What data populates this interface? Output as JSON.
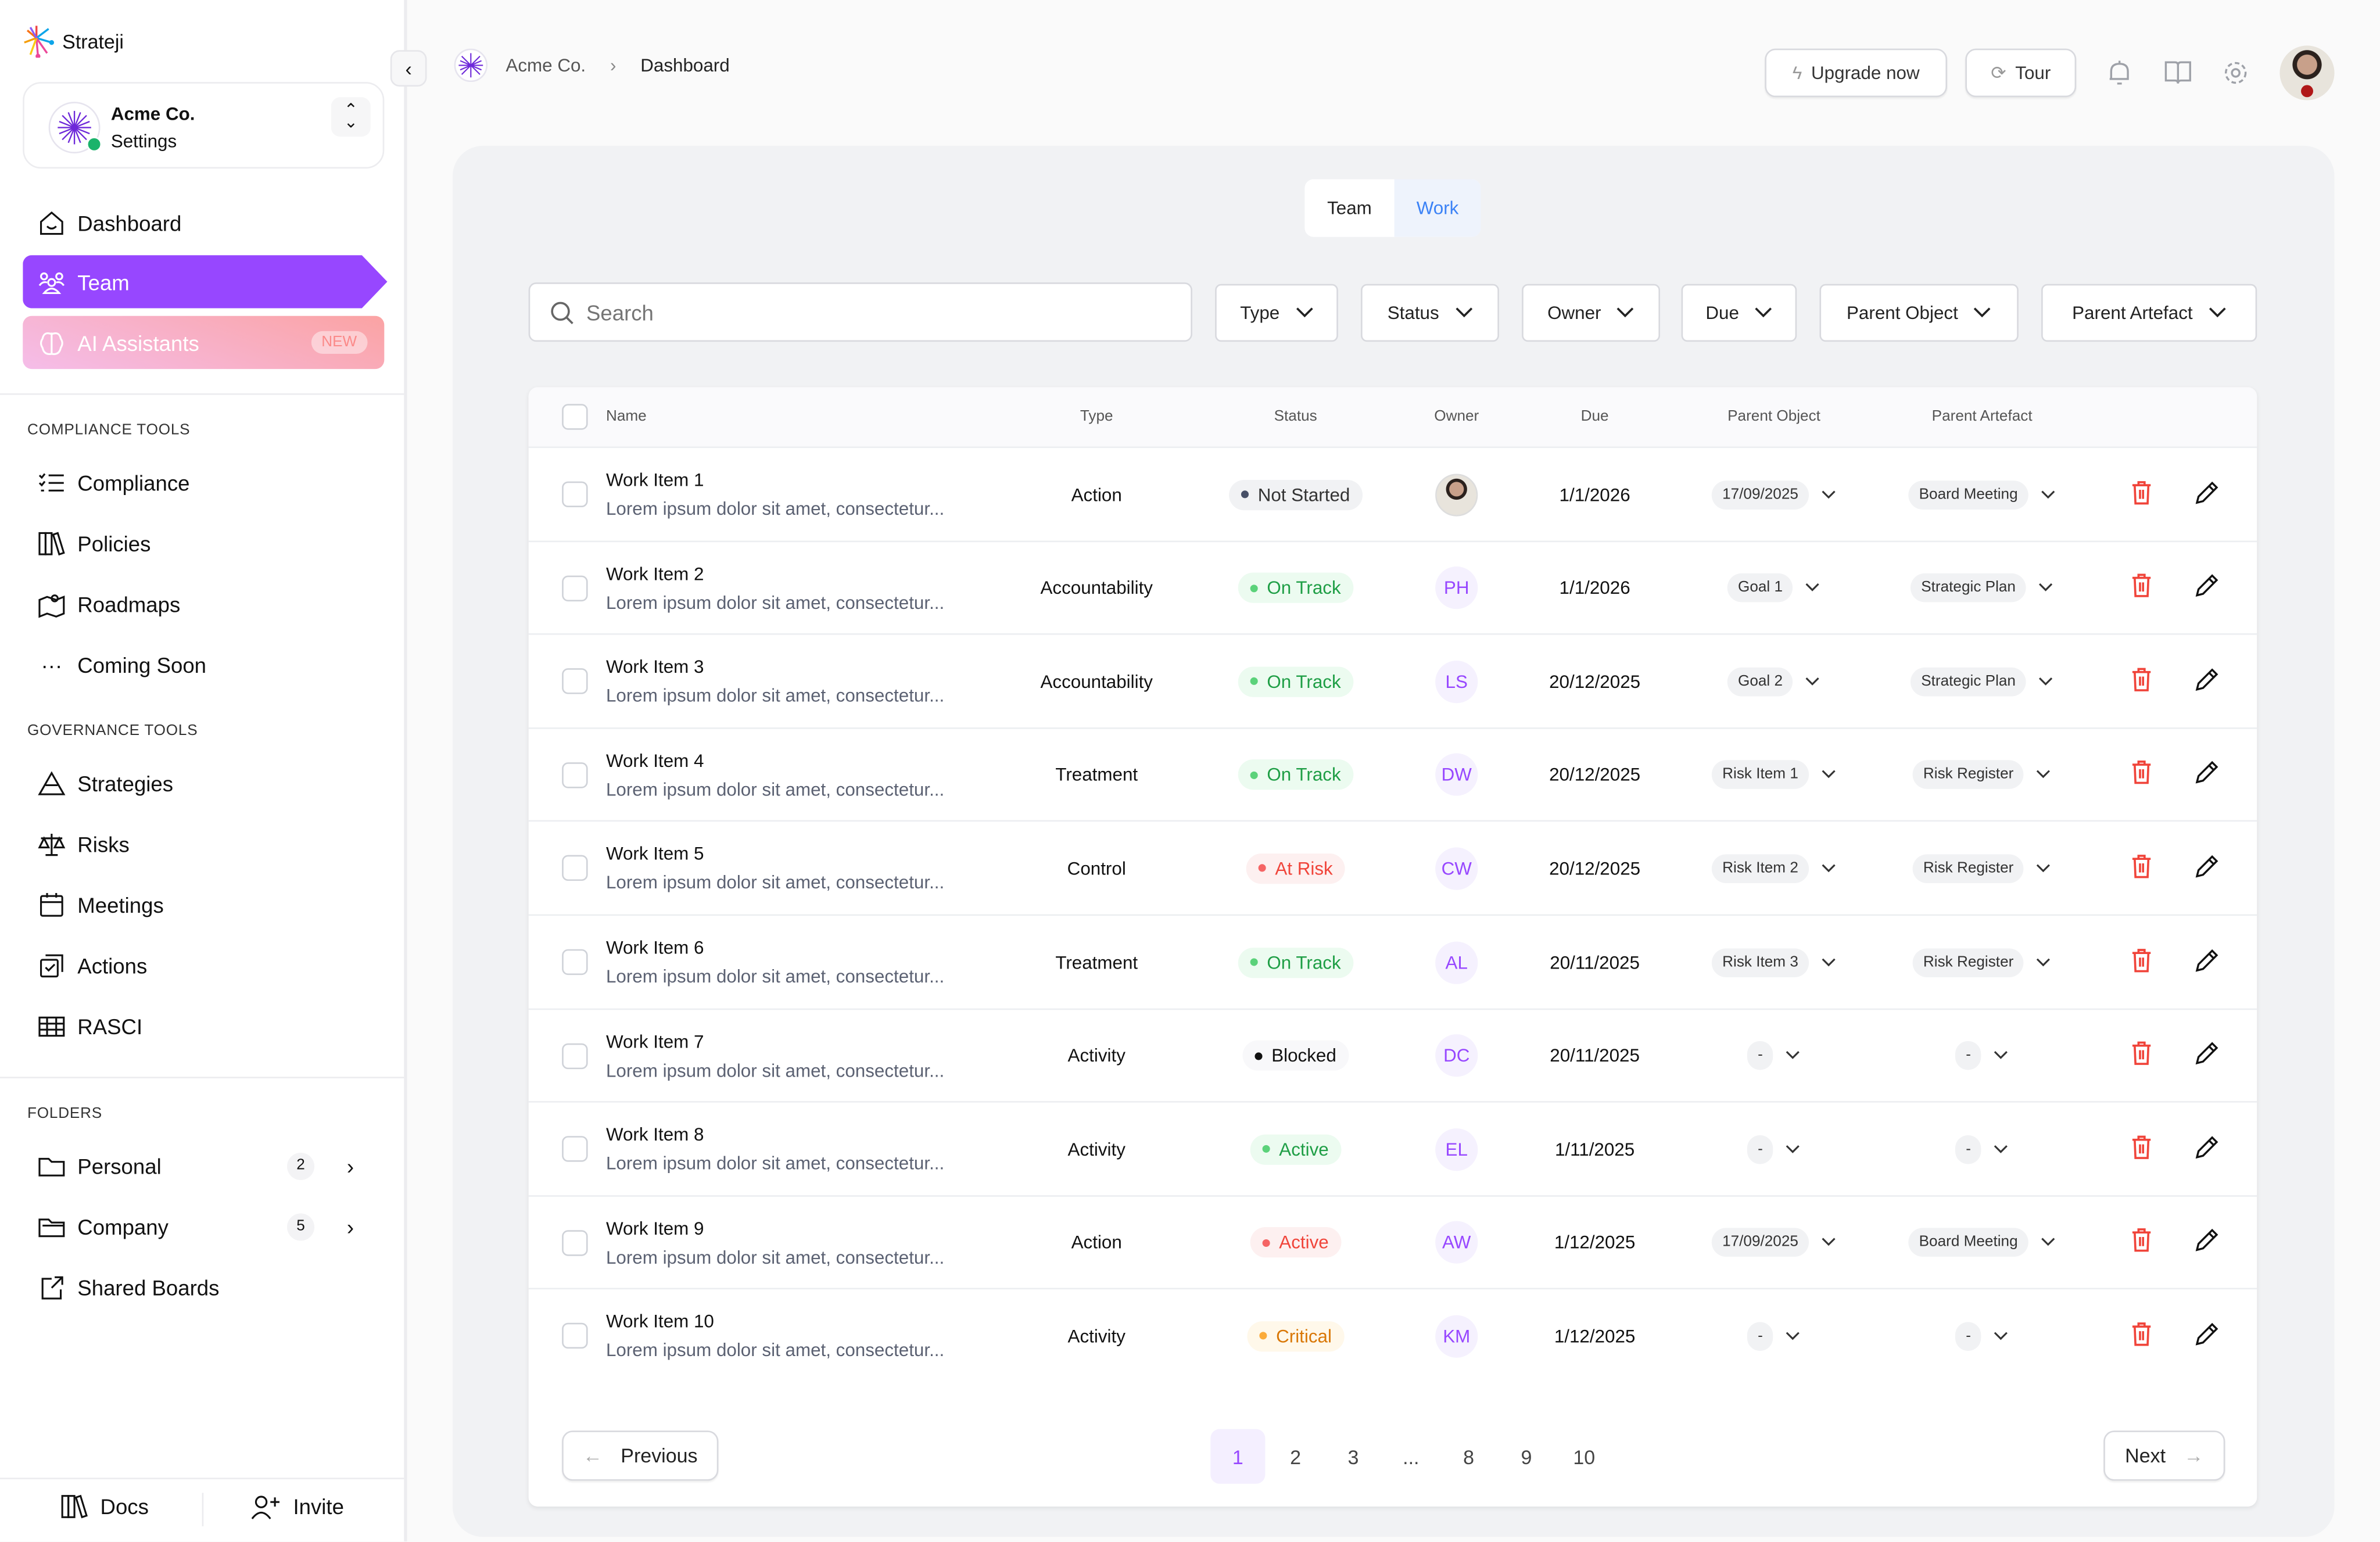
{
  "app": {
    "name": "Strateji"
  },
  "org": {
    "name": "Acme Co.",
    "subtitle": "Settings"
  },
  "nav": {
    "dashboard": "Dashboard",
    "team": "Team",
    "ai": "AI Assistants",
    "ai_badge": "NEW"
  },
  "compliance": {
    "title": "COMPLIANCE TOOLS",
    "items": [
      "Compliance",
      "Policies",
      "Roadmaps",
      "Coming Soon"
    ]
  },
  "governance": {
    "title": "GOVERNANCE TOOLS",
    "items": [
      "Strategies",
      "Risks",
      "Meetings",
      "Actions",
      "RASCI"
    ]
  },
  "folders": {
    "title": "FOLDERS",
    "items": [
      {
        "label": "Personal",
        "count": "2"
      },
      {
        "label": "Company",
        "count": "5"
      },
      {
        "label": "Shared Boards"
      }
    ]
  },
  "footer": {
    "docs": "Docs",
    "invite": "Invite"
  },
  "breadcrumb": {
    "org": "Acme Co.",
    "page": "Dashboard"
  },
  "topbar": {
    "upgrade": "Upgrade now",
    "tour": "Tour"
  },
  "toggle": {
    "team": "Team",
    "work": "Work",
    "active": "Work"
  },
  "search": {
    "placeholder": "Search"
  },
  "filters": [
    "Type",
    "Status",
    "Owner",
    "Due",
    "Parent Object",
    "Parent Artefact"
  ],
  "columns": [
    "Name",
    "Type",
    "Status",
    "Owner",
    "Due",
    "Parent Object",
    "Parent Artefact"
  ],
  "colors": {
    "accent": "#9747ff",
    "danger": "#f0443a",
    "success": "#1e9e45",
    "warning": "#d97706"
  },
  "rows": [
    {
      "name": "Work Item 1",
      "desc": "Lorem ipsum dolor sit amet, consectetur...",
      "type": "Action",
      "status": "Not Started",
      "tone": "neutral",
      "owner": "",
      "owner_avatar": "photo",
      "due": "1/1/2026",
      "parent_object": "17/09/2025",
      "parent_artefact": "Board Meeting"
    },
    {
      "name": "Work Item 2",
      "desc": "Lorem ipsum dolor sit amet, consectetur...",
      "type": "Accountability",
      "status": "On Track",
      "tone": "green",
      "owner": "PH",
      "due": "1/1/2026",
      "parent_object": "Goal 1",
      "parent_artefact": "Strategic Plan"
    },
    {
      "name": "Work Item 3",
      "desc": "Lorem ipsum dolor sit amet, consectetur...",
      "type": "Accountability",
      "status": "On Track",
      "tone": "green",
      "owner": "LS",
      "due": "20/12/2025",
      "parent_object": "Goal 2",
      "parent_artefact": "Strategic Plan"
    },
    {
      "name": "Work Item 4",
      "desc": "Lorem ipsum dolor sit amet, consectetur...",
      "type": "Treatment",
      "status": "On Track",
      "tone": "green",
      "owner": "DW",
      "due": "20/12/2025",
      "parent_object": "Risk Item 1",
      "parent_artefact": "Risk Register"
    },
    {
      "name": "Work Item 5",
      "desc": "Lorem ipsum dolor sit amet, consectetur...",
      "type": "Control",
      "status": "At Risk",
      "tone": "red",
      "owner": "CW",
      "due": "20/12/2025",
      "parent_object": "Risk Item 2",
      "parent_artefact": "Risk Register"
    },
    {
      "name": "Work Item 6",
      "desc": "Lorem ipsum dolor sit amet, consectetur...",
      "type": "Treatment",
      "status": "On Track",
      "tone": "green",
      "owner": "AL",
      "due": "20/11/2025",
      "parent_object": "Risk Item 3",
      "parent_artefact": "Risk Register"
    },
    {
      "name": "Work Item 7",
      "desc": "Lorem ipsum dolor sit amet, consectetur...",
      "type": "Activity",
      "status": "Blocked",
      "tone": "black",
      "owner": "DC",
      "due": "20/11/2025",
      "parent_object": "-",
      "parent_artefact": "-"
    },
    {
      "name": "Work Item 8",
      "desc": "Lorem ipsum dolor sit amet, consectetur...",
      "type": "Activity",
      "status": "Active",
      "tone": "green",
      "owner": "EL",
      "due": "1/11/2025",
      "parent_object": "-",
      "parent_artefact": "-"
    },
    {
      "name": "Work Item 9",
      "desc": "Lorem ipsum dolor sit amet, consectetur...",
      "type": "Action",
      "status": "Active",
      "tone": "red",
      "owner": "AW",
      "due": "1/12/2025",
      "parent_object": "17/09/2025",
      "parent_artefact": "Board Meeting"
    },
    {
      "name": "Work Item 10",
      "desc": "Lorem ipsum dolor sit amet, consectetur...",
      "type": "Activity",
      "status": "Critical",
      "tone": "orange",
      "owner": "KM",
      "due": "1/12/2025",
      "parent_object": "-",
      "parent_artefact": "-"
    }
  ],
  "pagination": {
    "previous": "Previous",
    "next": "Next",
    "pages": [
      "1",
      "2",
      "3",
      "...",
      "8",
      "9",
      "10"
    ],
    "current": "1"
  }
}
